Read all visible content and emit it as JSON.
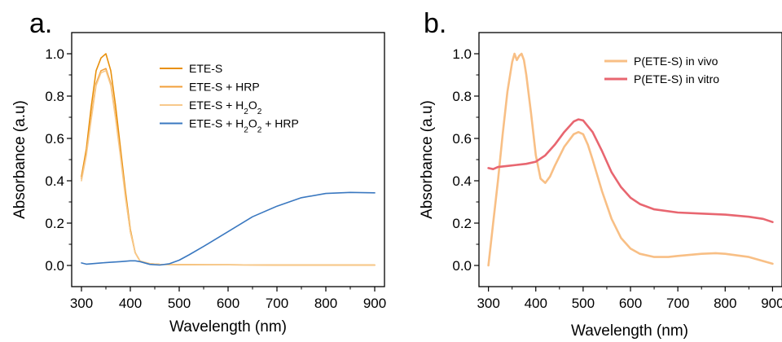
{
  "figure": {
    "panels": [
      {
        "label": "a."
      },
      {
        "label": "b."
      }
    ]
  },
  "chart_data": [
    {
      "type": "line",
      "panel": "a.",
      "xlabel": "Wavelength (nm)",
      "ylabel": "Absorbance (a.u)",
      "xlim": [
        280,
        920
      ],
      "ylim": [
        -0.1,
        1.1
      ],
      "xticks": [
        "300",
        "400",
        "500",
        "600",
        "700",
        "800",
        "900"
      ],
      "yticks": [
        "0.0",
        "0.2",
        "0.4",
        "0.6",
        "0.8",
        "1.0"
      ],
      "grid": false,
      "legend_position": "top-right",
      "series": [
        {
          "name": "ETE-S",
          "color": "#e8900c",
          "x": [
            300,
            310,
            320,
            330,
            340,
            350,
            360,
            370,
            380,
            390,
            400,
            410,
            420,
            440,
            460,
            500,
            600,
            700,
            800,
            900
          ],
          "y": [
            0.42,
            0.55,
            0.75,
            0.92,
            0.98,
            1.0,
            0.92,
            0.75,
            0.55,
            0.35,
            0.17,
            0.06,
            0.02,
            0.008,
            0.005,
            0.004,
            0.003,
            0.002,
            0.002,
            0.002
          ]
        },
        {
          "name": "ETE-S + HRP",
          "color": "#f29f3a",
          "x": [
            300,
            310,
            320,
            330,
            340,
            350,
            360,
            370,
            380,
            390,
            400,
            410,
            420,
            440,
            460,
            500,
            600,
            700,
            800,
            900
          ],
          "y": [
            0.41,
            0.53,
            0.7,
            0.86,
            0.92,
            0.93,
            0.86,
            0.7,
            0.52,
            0.33,
            0.16,
            0.06,
            0.02,
            0.008,
            0.005,
            0.004,
            0.003,
            0.002,
            0.002,
            0.002
          ]
        },
        {
          "name": "ETE-S + H2O2",
          "label_parts": [
            "ETE-S + H",
            "2",
            "O",
            "2"
          ],
          "color": "#f7c98b",
          "x": [
            300,
            310,
            320,
            330,
            340,
            350,
            360,
            370,
            380,
            390,
            400,
            410,
            420,
            440,
            460,
            500,
            600,
            700,
            800,
            900
          ],
          "y": [
            0.4,
            0.52,
            0.69,
            0.85,
            0.91,
            0.92,
            0.85,
            0.69,
            0.51,
            0.32,
            0.16,
            0.06,
            0.02,
            0.008,
            0.005,
            0.004,
            0.003,
            0.002,
            0.002,
            0.002
          ]
        },
        {
          "name": "ETE-S + H2O2 + HRP",
          "label_parts": [
            "ETE-S + H",
            "2",
            "O",
            "2",
            " + HRP"
          ],
          "color": "#3a78c0",
          "x": [
            300,
            310,
            320,
            340,
            360,
            380,
            400,
            410,
            420,
            440,
            460,
            480,
            500,
            520,
            550,
            600,
            650,
            700,
            750,
            800,
            850,
            900
          ],
          "y": [
            0.012,
            0.006,
            0.008,
            0.012,
            0.015,
            0.018,
            0.022,
            0.022,
            0.018,
            0.005,
            0.002,
            0.008,
            0.025,
            0.05,
            0.09,
            0.16,
            0.23,
            0.28,
            0.32,
            0.34,
            0.345,
            0.343
          ]
        }
      ]
    },
    {
      "type": "line",
      "panel": "b.",
      "xlabel": "Wavelength (nm)",
      "ylabel": "Absorbance (a.u)",
      "xlim": [
        280,
        920
      ],
      "ylim": [
        -0.1,
        1.1
      ],
      "xticks": [
        "300",
        "400",
        "500",
        "600",
        "700",
        "800",
        "900"
      ],
      "yticks": [
        "0.0",
        "0.2",
        "0.4",
        "0.6",
        "0.8",
        "1.0"
      ],
      "grid": false,
      "legend_position": "top-right",
      "series": [
        {
          "name": "P(ETE-S) in vivo",
          "color": "#f8bf85",
          "x": [
            300,
            305,
            310,
            320,
            330,
            340,
            350,
            355,
            360,
            365,
            370,
            375,
            380,
            390,
            400,
            410,
            420,
            430,
            440,
            460,
            480,
            490,
            500,
            510,
            520,
            540,
            560,
            580,
            600,
            620,
            650,
            680,
            700,
            750,
            780,
            800,
            850,
            900
          ],
          "y": [
            0.0,
            0.1,
            0.2,
            0.4,
            0.62,
            0.82,
            0.96,
            1.0,
            0.97,
            0.99,
            1.0,
            0.97,
            0.9,
            0.72,
            0.52,
            0.41,
            0.39,
            0.42,
            0.47,
            0.56,
            0.62,
            0.63,
            0.62,
            0.57,
            0.5,
            0.35,
            0.22,
            0.13,
            0.08,
            0.055,
            0.04,
            0.04,
            0.045,
            0.055,
            0.058,
            0.055,
            0.04,
            0.008
          ]
        },
        {
          "name": "P(ETE-S) in vitro",
          "color": "#e86670",
          "x": [
            300,
            310,
            320,
            340,
            360,
            380,
            400,
            420,
            440,
            460,
            480,
            490,
            500,
            520,
            540,
            560,
            580,
            600,
            620,
            650,
            700,
            750,
            800,
            850,
            880,
            900
          ],
          "y": [
            0.46,
            0.455,
            0.465,
            0.47,
            0.475,
            0.48,
            0.49,
            0.52,
            0.57,
            0.63,
            0.68,
            0.69,
            0.685,
            0.63,
            0.54,
            0.44,
            0.37,
            0.32,
            0.29,
            0.265,
            0.25,
            0.245,
            0.24,
            0.23,
            0.22,
            0.205
          ]
        }
      ]
    }
  ]
}
